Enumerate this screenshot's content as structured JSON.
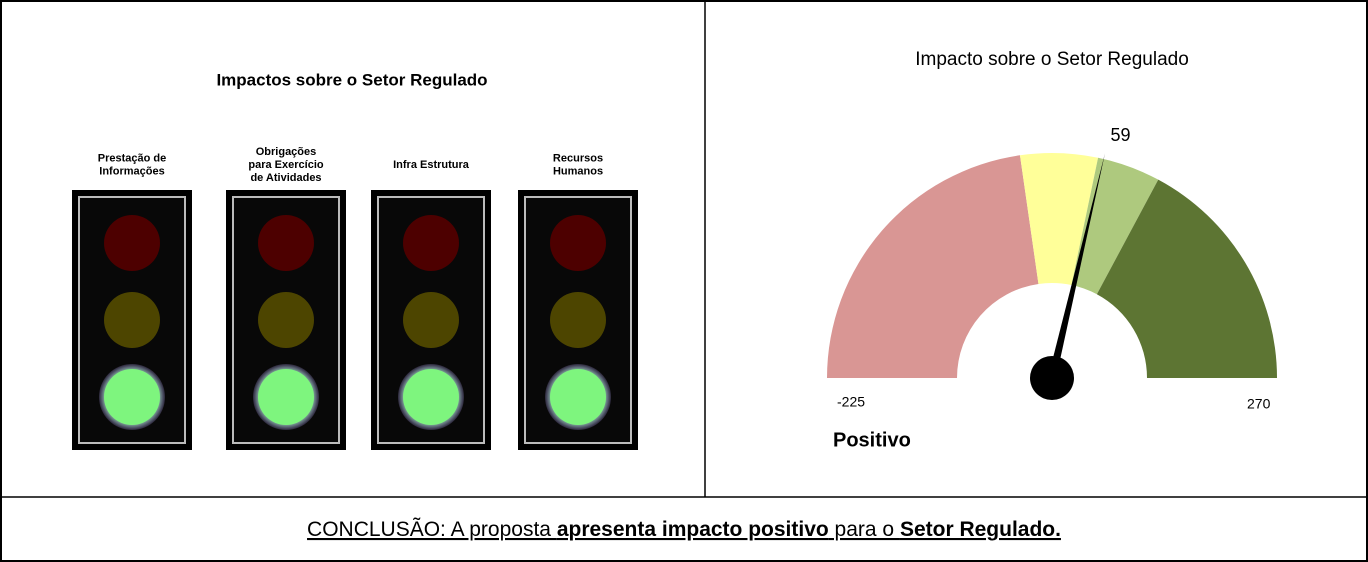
{
  "left_panel": {
    "title": "Impactos sobre o Setor Regulado",
    "lights": [
      {
        "label": [
          "Prestação de",
          "Informações"
        ],
        "active": "green"
      },
      {
        "label": [
          "Obrigações",
          "para Exercício",
          "de Atividades"
        ],
        "active": "green"
      },
      {
        "label": [
          "Infra Estrutura"
        ],
        "active": "green"
      },
      {
        "label": [
          "Recursos",
          "Humanos"
        ],
        "active": "green"
      }
    ]
  },
  "gauge": {
    "title": "Impacto sobre o Setor Regulado",
    "min": -225,
    "max": 270,
    "value": 59,
    "bands": [
      {
        "from": -225,
        "to": 0,
        "color": "#d99694"
      },
      {
        "from": 0,
        "to": 55,
        "color": "#ffff99"
      },
      {
        "from": 55,
        "to": 100,
        "color": "#aec97e"
      },
      {
        "from": 100,
        "to": 270,
        "color": "#5d7533"
      }
    ],
    "status": "Positivo"
  },
  "conclusion": {
    "parts": [
      {
        "text": "CONCLUSÃO: A proposta ",
        "bold": false
      },
      {
        "text": "apresenta impacto positivo",
        "bold": true
      },
      {
        "text": " para o ",
        "bold": false
      },
      {
        "text": "Setor Regulado.",
        "bold": true
      }
    ]
  }
}
